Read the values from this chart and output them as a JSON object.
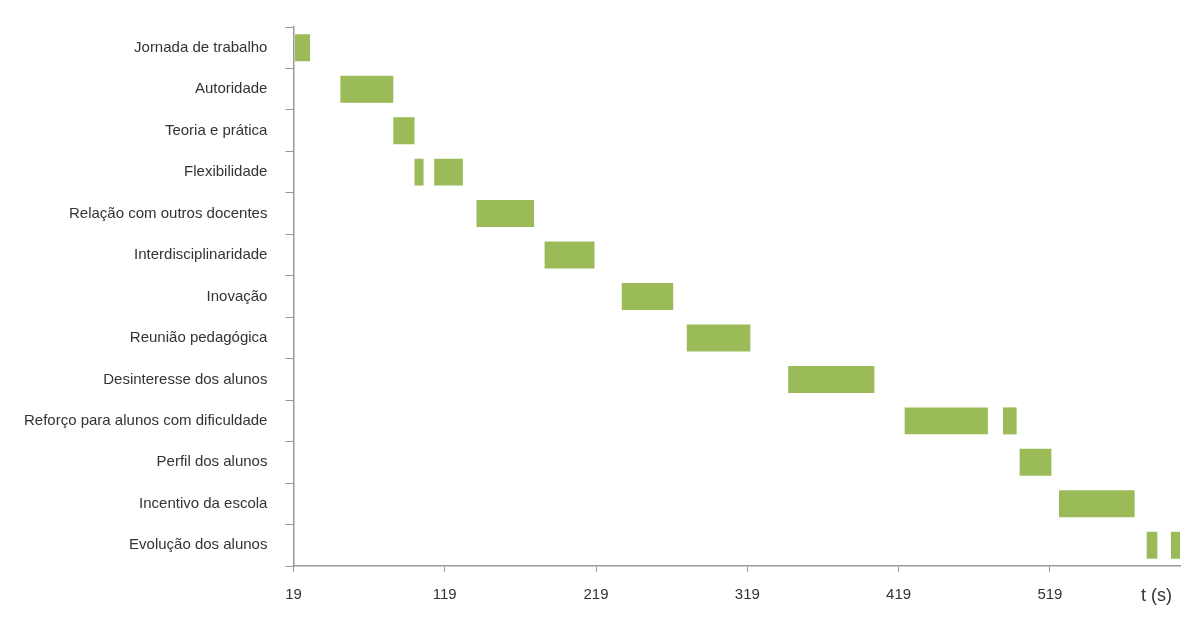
{
  "chart_data": {
    "type": "bar",
    "orientation": "horizontal",
    "xlabel": "t (s)",
    "categories": [
      "Jornada de trabalho",
      "Autoridade",
      "Teoria e prática",
      "Flexibilidade",
      "Relação com outros docentes",
      "Interdisciplinaridade",
      "Inovação",
      "Reunião pedagógica",
      "Desinteresse dos alunos",
      "Reforço para alunos com dificuldade",
      "Perfil dos alunos",
      "Incentivo da escola",
      "Evolução dos alunos"
    ],
    "series": [
      {
        "color": "#9bbb59",
        "base": [
          20,
          50,
          85,
          99,
          140,
          185,
          236,
          279,
          346,
          423,
          499,
          525,
          583
        ],
        "values": [
          10,
          35,
          14,
          6,
          38,
          33,
          34,
          42,
          57,
          55,
          21,
          50,
          7
        ]
      },
      {
        "color": "#9bbb59",
        "base": [
          null,
          null,
          null,
          112,
          null,
          null,
          null,
          null,
          null,
          488,
          null,
          null,
          599
        ],
        "values": [
          null,
          null,
          null,
          19,
          null,
          null,
          null,
          null,
          null,
          9,
          null,
          null,
          6
        ]
      }
    ],
    "xlim": [
      19,
      605
    ],
    "xticks": [
      19,
      119,
      219,
      319,
      419,
      519
    ],
    "grid": false,
    "legend": false
  }
}
